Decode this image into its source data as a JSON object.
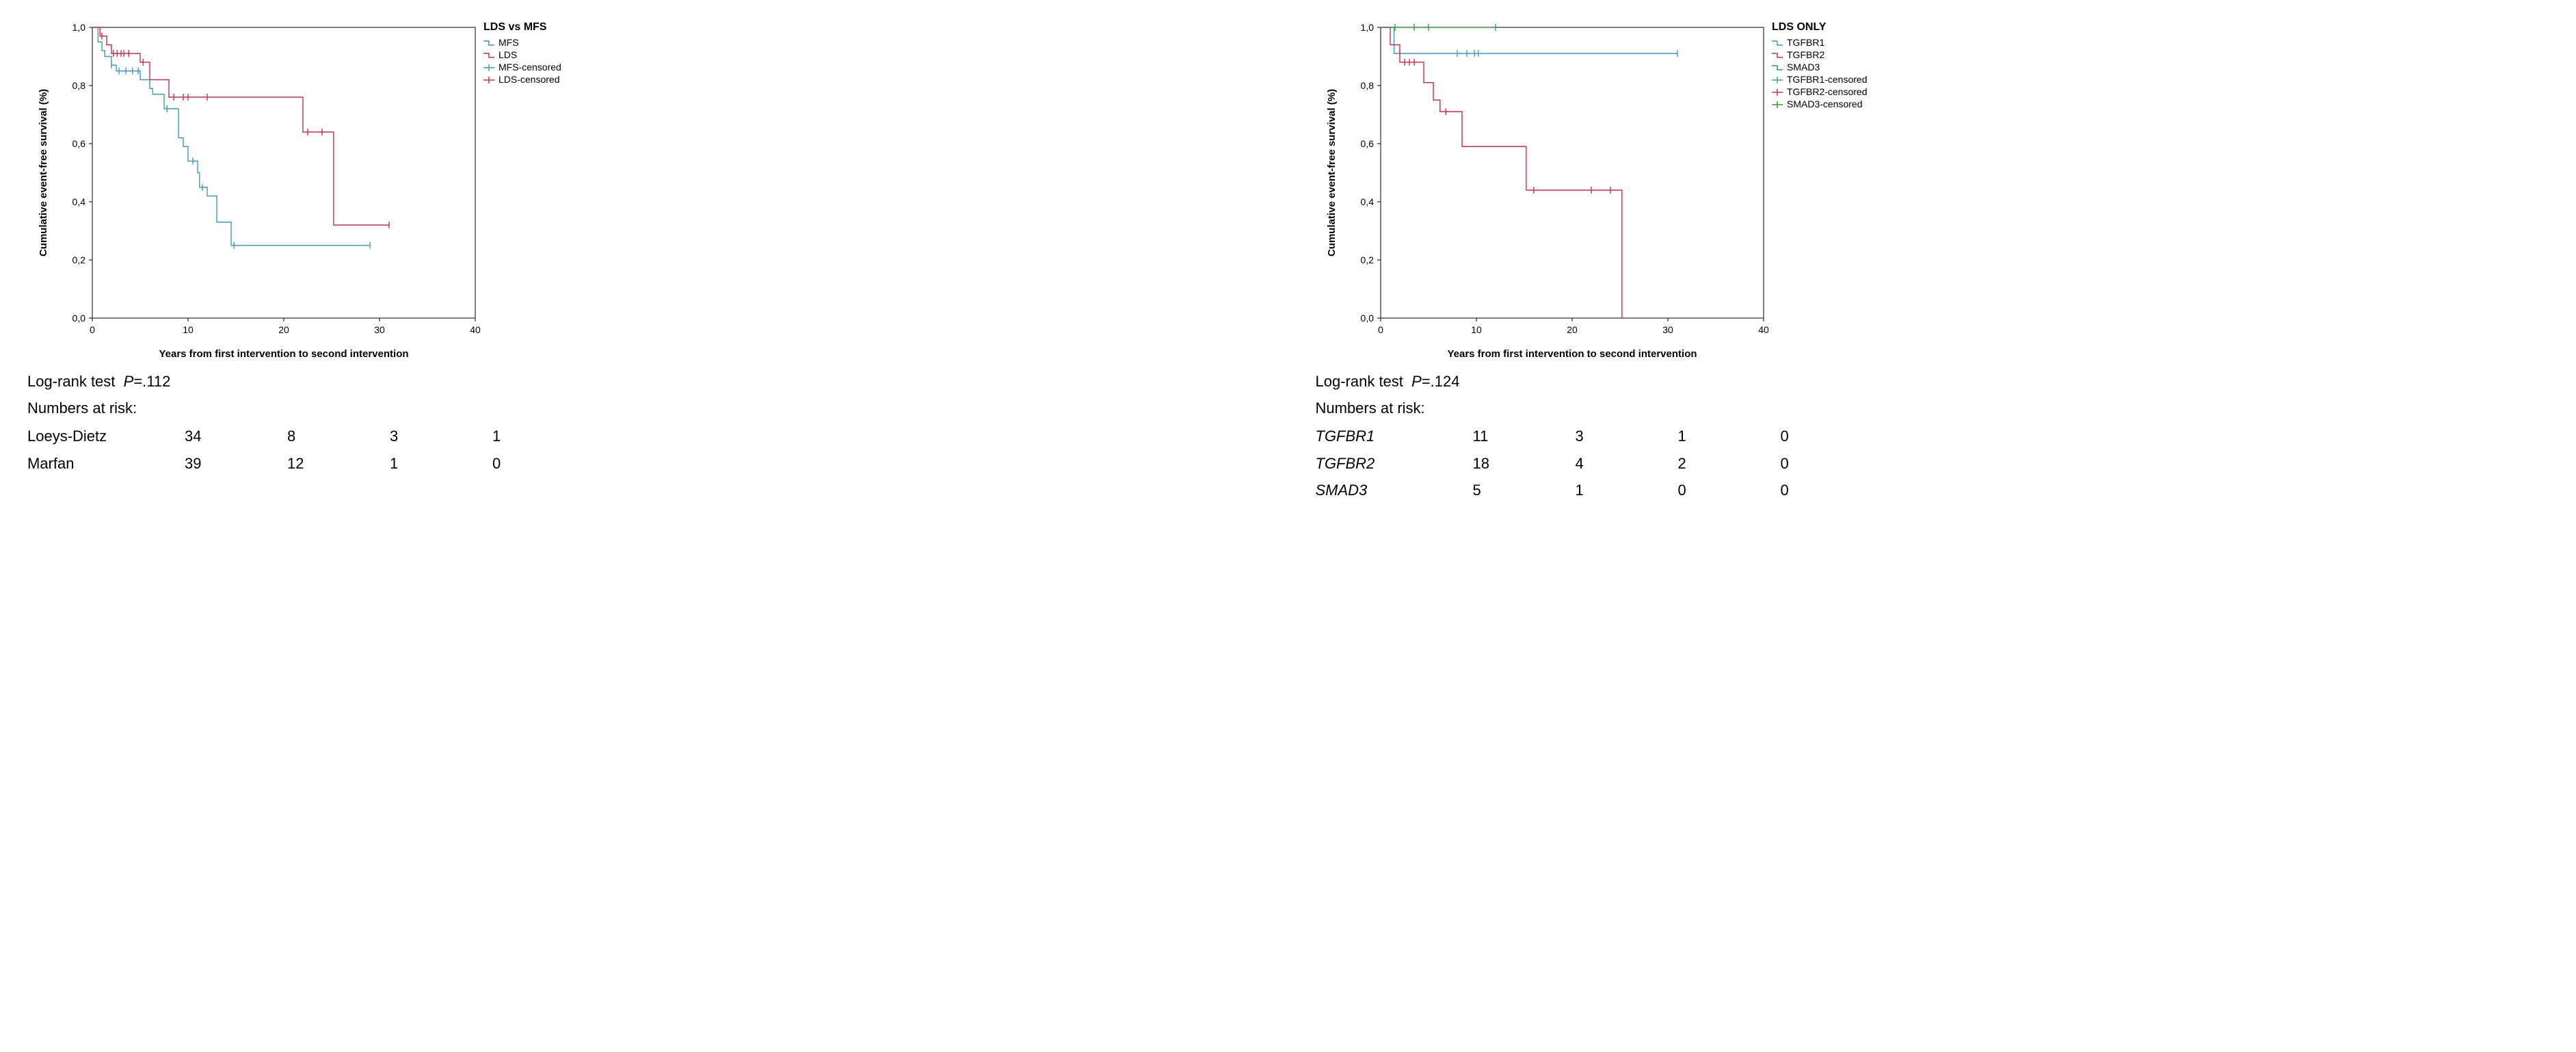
{
  "left": {
    "chart": {
      "type": "kaplan-meier",
      "title": "LDS vs MFS",
      "ylabel": "Cumulative event-free survival (%)",
      "xlabel": "Years from first intervention to second intervention",
      "xlim": [
        0,
        40
      ],
      "xtick_step": 10,
      "ylim": [
        0,
        1.0
      ],
      "ytick_step": 0.2,
      "decimal_comma": true,
      "line_width": 1.4,
      "censor_marker_size": 5,
      "background_color": "#ffffff",
      "axis_color": "#000000",
      "tick_fontsize": 14,
      "label_fontsize": 15,
      "title_fontsize": 16,
      "legend_fontsize": 14,
      "series": [
        {
          "name": "MFS",
          "color": "#3e9ac4",
          "steps": [
            [
              0,
              1.0
            ],
            [
              0.6,
              0.95
            ],
            [
              1.0,
              0.92
            ],
            [
              1.3,
              0.9
            ],
            [
              2.0,
              0.87
            ],
            [
              2.5,
              0.85
            ],
            [
              3.0,
              0.85
            ],
            [
              5.0,
              0.82
            ],
            [
              6.0,
              0.79
            ],
            [
              6.3,
              0.77
            ],
            [
              7.5,
              0.72
            ],
            [
              9.0,
              0.62
            ],
            [
              9.5,
              0.59
            ],
            [
              10.0,
              0.54
            ],
            [
              11.0,
              0.5
            ],
            [
              11.2,
              0.45
            ],
            [
              12.0,
              0.42
            ],
            [
              13.0,
              0.33
            ],
            [
              14.5,
              0.25
            ],
            [
              29.0,
              0.25
            ]
          ],
          "censored": [
            [
              2.0,
              0.87
            ],
            [
              2.8,
              0.85
            ],
            [
              3.5,
              0.85
            ],
            [
              4.2,
              0.85
            ],
            [
              4.8,
              0.85
            ],
            [
              7.8,
              0.72
            ],
            [
              10.5,
              0.54
            ],
            [
              11.5,
              0.45
            ],
            [
              14.8,
              0.25
            ],
            [
              29.0,
              0.25
            ]
          ]
        },
        {
          "name": "LDS",
          "color": "#d22e4c",
          "steps": [
            [
              0,
              1.0
            ],
            [
              0.8,
              0.97
            ],
            [
              1.5,
              0.94
            ],
            [
              2.0,
              0.91
            ],
            [
              3.5,
              0.91
            ],
            [
              5.0,
              0.88
            ],
            [
              6.0,
              0.82
            ],
            [
              8.0,
              0.76
            ],
            [
              20.0,
              0.76
            ],
            [
              22.0,
              0.64
            ],
            [
              25.0,
              0.64
            ],
            [
              25.2,
              0.32
            ],
            [
              31.0,
              0.32
            ]
          ],
          "censored": [
            [
              1.0,
              0.97
            ],
            [
              2.2,
              0.91
            ],
            [
              2.6,
              0.91
            ],
            [
              3.0,
              0.91
            ],
            [
              3.3,
              0.91
            ],
            [
              3.8,
              0.91
            ],
            [
              5.3,
              0.88
            ],
            [
              8.5,
              0.76
            ],
            [
              9.5,
              0.76
            ],
            [
              10.0,
              0.76
            ],
            [
              12.0,
              0.76
            ],
            [
              22.5,
              0.64
            ],
            [
              24.0,
              0.64
            ],
            [
              31.0,
              0.32
            ]
          ]
        }
      ],
      "legend_items": [
        "MFS",
        "LDS",
        "MFS-censored",
        "LDS-censored"
      ],
      "legend_colors": [
        "#3e9ac4",
        "#d22e4c",
        "#3e9ac4",
        "#d22e4c"
      ],
      "legend_markers": [
        "step",
        "step",
        "tick",
        "tick"
      ]
    },
    "stats": {
      "log_rank_label": "Log-rank test",
      "p_label": "P",
      "p_value": "=.112",
      "risk_label": "Numbers at risk:",
      "rows": [
        {
          "label": "Loeys-Dietz",
          "italic": false,
          "vals": [
            "34",
            "8",
            "3",
            "1"
          ]
        },
        {
          "label": "Marfan",
          "italic": false,
          "vals": [
            "39",
            "12",
            "1",
            "0"
          ]
        }
      ]
    }
  },
  "right": {
    "chart": {
      "type": "kaplan-meier",
      "title": "LDS ONLY",
      "ylabel": "Cumulative event-free survival (%)",
      "xlabel": "Years from first intervention to second intervention",
      "xlim": [
        0,
        40
      ],
      "xtick_step": 10,
      "ylim": [
        0,
        1.0
      ],
      "ytick_step": 0.2,
      "decimal_comma": true,
      "line_width": 1.4,
      "censor_marker_size": 5,
      "background_color": "#ffffff",
      "axis_color": "#000000",
      "tick_fontsize": 14,
      "label_fontsize": 15,
      "title_fontsize": 16,
      "legend_fontsize": 14,
      "series": [
        {
          "name": "TGFBR1",
          "color": "#3e9ac4",
          "steps": [
            [
              0,
              1.0
            ],
            [
              1.4,
              0.91
            ],
            [
              31.0,
              0.91
            ]
          ],
          "censored": [
            [
              2.0,
              0.91
            ],
            [
              8.0,
              0.91
            ],
            [
              9.0,
              0.91
            ],
            [
              9.8,
              0.91
            ],
            [
              10.2,
              0.91
            ],
            [
              31.0,
              0.91
            ]
          ]
        },
        {
          "name": "TGFBR2",
          "color": "#d22e4c",
          "steps": [
            [
              0,
              1.0
            ],
            [
              1.0,
              0.94
            ],
            [
              2.0,
              0.88
            ],
            [
              4.5,
              0.81
            ],
            [
              5.5,
              0.75
            ],
            [
              6.2,
              0.71
            ],
            [
              8.5,
              0.59
            ],
            [
              15.0,
              0.59
            ],
            [
              15.2,
              0.44
            ],
            [
              25.0,
              0.44
            ],
            [
              25.2,
              0.0
            ]
          ],
          "censored": [
            [
              2.5,
              0.88
            ],
            [
              3.0,
              0.88
            ],
            [
              3.5,
              0.88
            ],
            [
              6.8,
              0.71
            ],
            [
              16.0,
              0.44
            ],
            [
              22.0,
              0.44
            ],
            [
              24.0,
              0.44
            ]
          ]
        },
        {
          "name": "SMAD3",
          "color": "#2e9e3f",
          "steps": [
            [
              0,
              1.0
            ],
            [
              12.0,
              1.0
            ]
          ],
          "censored": [
            [
              1.5,
              1.0
            ],
            [
              3.5,
              1.0
            ],
            [
              5.0,
              1.0
            ],
            [
              12.0,
              1.0
            ]
          ]
        }
      ],
      "legend_items": [
        "TGFBR1",
        "TGFBR2",
        "SMAD3",
        "TGFBR1-censored",
        "TGFBR2-censored",
        "SMAD3-censored"
      ],
      "legend_colors": [
        "#3e9ac4",
        "#d22e4c",
        "#2e9e3f",
        "#3e9ac4",
        "#d22e4c",
        "#2e9e3f"
      ],
      "legend_markers": [
        "step",
        "step",
        "step",
        "tick",
        "tick",
        "tick"
      ]
    },
    "stats": {
      "log_rank_label": "Log-rank test",
      "p_label": "P",
      "p_value": "=.124",
      "risk_label": "Numbers at risk:",
      "rows": [
        {
          "label": "TGFBR1",
          "italic": true,
          "vals": [
            "11",
            "3",
            "1",
            "0"
          ]
        },
        {
          "label": "TGFBR2",
          "italic": true,
          "vals": [
            "18",
            "4",
            "2",
            "0"
          ]
        },
        {
          "label": "SMAD3",
          "italic": true,
          "vals": [
            "5",
            "1",
            "0",
            "0"
          ]
        }
      ]
    }
  }
}
